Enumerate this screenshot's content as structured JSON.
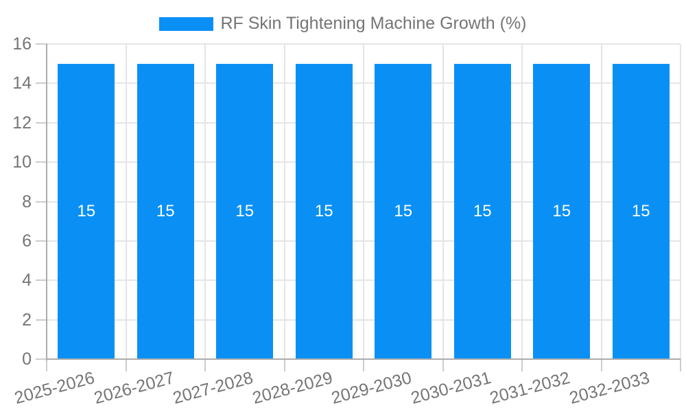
{
  "legend": {
    "label": "RF Skin Tightening Machine Growth (%)"
  },
  "chart_data": {
    "type": "bar",
    "title": "RF Skin Tightening Machine Growth (%)",
    "categories": [
      "2025-2026",
      "2026-2027",
      "2027-2028",
      "2028-2029",
      "2029-2030",
      "2030-2031",
      "2031-2032",
      "2032-2033"
    ],
    "values": [
      15,
      15,
      15,
      15,
      15,
      15,
      15,
      15
    ],
    "bar_value_labels": [
      "15",
      "15",
      "15",
      "15",
      "15",
      "15",
      "15",
      "15"
    ],
    "xlabel": "",
    "ylabel": "",
    "ylim": [
      0,
      16
    ],
    "ytick_step": 2,
    "ytick_labels": [
      "0",
      "2",
      "4",
      "6",
      "8",
      "10",
      "12",
      "14",
      "16"
    ],
    "grid": true,
    "legend_position": "top",
    "x_label_rotation_deg": -15
  },
  "colors": {
    "bar": "#0a90f5",
    "grid": "#e5e5e5",
    "axis": "#ababab",
    "tick": "#cccccc",
    "axis_text": "#757575",
    "bar_label": "#ffffff",
    "background": "#ffffff"
  }
}
